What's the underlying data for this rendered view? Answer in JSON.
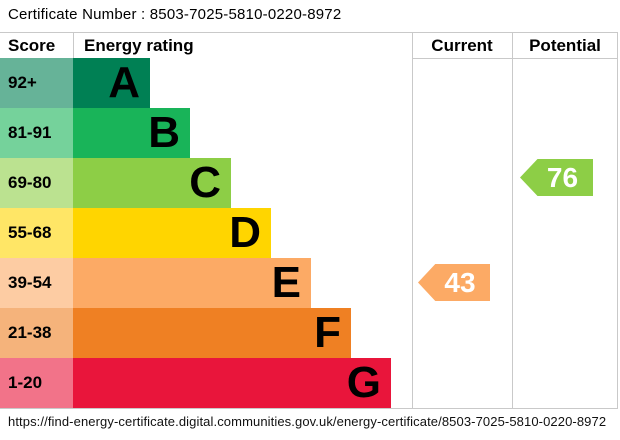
{
  "certificate": {
    "title": "Certificate Number : 8503-7025-5810-0220-8972",
    "number": "8503-7025-5810-0220-8972"
  },
  "table": {
    "headers": {
      "score": "Score",
      "rating": "Energy rating",
      "current": "Current",
      "potential": "Potential"
    }
  },
  "chart_data": {
    "type": "bar",
    "title": "Energy rating (EPC) bands",
    "categories": [
      "A",
      "B",
      "C",
      "D",
      "E",
      "F",
      "G"
    ],
    "bands": [
      {
        "letter": "A",
        "score_range": "92+",
        "color": "#008054",
        "tint": "#66b398"
      },
      {
        "letter": "B",
        "score_range": "81-91",
        "color": "#19b459",
        "tint": "#75d29b"
      },
      {
        "letter": "C",
        "score_range": "69-80",
        "color": "#8dce46",
        "tint": "#bbe290"
      },
      {
        "letter": "D",
        "score_range": "55-68",
        "color": "#ffd500",
        "tint": "#ffe666"
      },
      {
        "letter": "E",
        "score_range": "39-54",
        "color": "#fcaa65",
        "tint": "#fdcca3"
      },
      {
        "letter": "F",
        "score_range": "21-38",
        "color": "#ef8023",
        "tint": "#f5b37b"
      },
      {
        "letter": "G",
        "score_range": "1-20",
        "color": "#e9153b",
        "tint": "#f27389"
      }
    ],
    "current": {
      "value": 43,
      "band": "E",
      "color": "#fcaa65"
    },
    "potential": {
      "value": 76,
      "band": "C",
      "color": "#8dce46"
    },
    "legend_position": "none",
    "grid": "column-separators-only"
  },
  "footer": {
    "url": "https://find-energy-certificate.digital.communities.gov.uk/energy-certificate/8503-7025-5810-0220-8972"
  }
}
